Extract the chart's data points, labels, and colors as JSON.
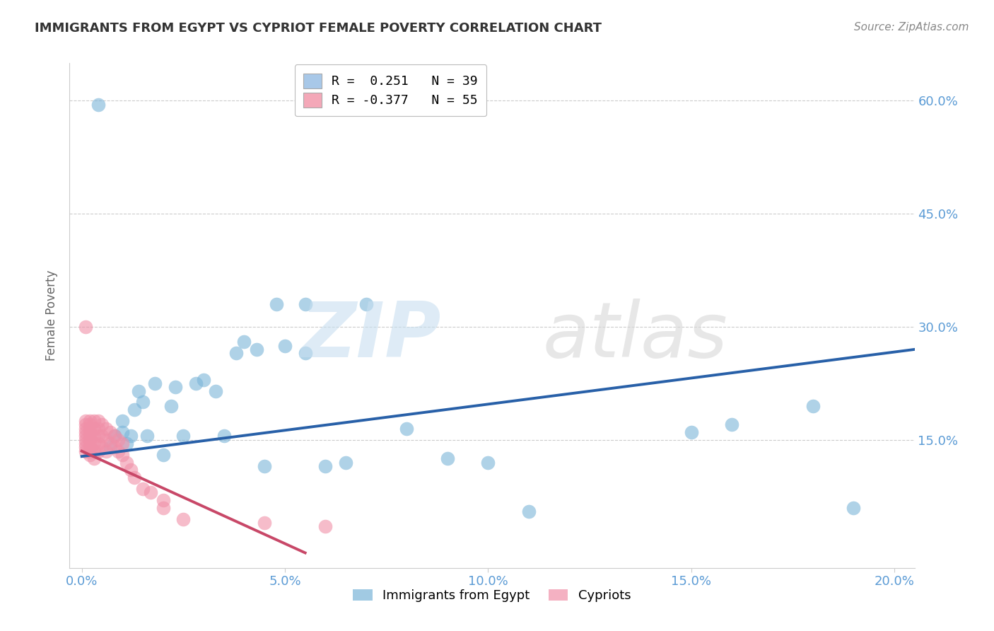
{
  "title": "IMMIGRANTS FROM EGYPT VS CYPRIOT FEMALE POVERTY CORRELATION CHART",
  "source": "Source: ZipAtlas.com",
  "xlabel_ticks": [
    "0.0%",
    "5.0%",
    "10.0%",
    "15.0%",
    "20.0%"
  ],
  "xlabel_tick_vals": [
    0.0,
    0.05,
    0.1,
    0.15,
    0.2
  ],
  "ylabel": "Female Poverty",
  "ylabel_ticks": [
    "15.0%",
    "30.0%",
    "45.0%",
    "60.0%"
  ],
  "ylabel_tick_vals": [
    0.15,
    0.3,
    0.45,
    0.6
  ],
  "xlim": [
    -0.003,
    0.205
  ],
  "ylim": [
    -0.02,
    0.65
  ],
  "legend1_label": "R =  0.251   N = 39",
  "legend2_label": "R = -0.377   N = 55",
  "legend1_color": "#a8c8e8",
  "legend2_color": "#f4a8b8",
  "blue_color": "#7ab4d8",
  "pink_color": "#f090a8",
  "blue_line_color": "#2860a8",
  "pink_line_color": "#c84868",
  "grid_color": "#cccccc",
  "background_color": "#ffffff",
  "egypt_x": [
    0.004,
    0.007,
    0.008,
    0.01,
    0.01,
    0.011,
    0.012,
    0.013,
    0.014,
    0.015,
    0.016,
    0.018,
    0.02,
    0.022,
    0.023,
    0.025,
    0.028,
    0.03,
    0.033,
    0.035,
    0.038,
    0.04,
    0.043,
    0.045,
    0.048,
    0.05,
    0.055,
    0.06,
    0.065,
    0.07,
    0.08,
    0.09,
    0.1,
    0.11,
    0.15,
    0.16,
    0.18,
    0.19,
    0.055
  ],
  "egypt_y": [
    0.595,
    0.14,
    0.155,
    0.16,
    0.175,
    0.145,
    0.155,
    0.19,
    0.215,
    0.2,
    0.155,
    0.225,
    0.13,
    0.195,
    0.22,
    0.155,
    0.225,
    0.23,
    0.215,
    0.155,
    0.265,
    0.28,
    0.27,
    0.115,
    0.33,
    0.275,
    0.265,
    0.115,
    0.12,
    0.33,
    0.165,
    0.125,
    0.12,
    0.055,
    0.16,
    0.17,
    0.195,
    0.06,
    0.33
  ],
  "cypriot_x": [
    0.001,
    0.001,
    0.001,
    0.001,
    0.001,
    0.001,
    0.001,
    0.001,
    0.001,
    0.002,
    0.002,
    0.002,
    0.002,
    0.002,
    0.002,
    0.002,
    0.002,
    0.002,
    0.002,
    0.003,
    0.003,
    0.003,
    0.003,
    0.003,
    0.003,
    0.004,
    0.004,
    0.004,
    0.004,
    0.004,
    0.005,
    0.005,
    0.005,
    0.006,
    0.006,
    0.006,
    0.007,
    0.007,
    0.008,
    0.008,
    0.009,
    0.009,
    0.01,
    0.01,
    0.011,
    0.012,
    0.013,
    0.015,
    0.017,
    0.02,
    0.02,
    0.025,
    0.045,
    0.06,
    0.001
  ],
  "cypriot_y": [
    0.17,
    0.165,
    0.155,
    0.15,
    0.145,
    0.14,
    0.135,
    0.175,
    0.16,
    0.175,
    0.17,
    0.165,
    0.16,
    0.155,
    0.15,
    0.145,
    0.14,
    0.135,
    0.13,
    0.175,
    0.165,
    0.155,
    0.145,
    0.135,
    0.125,
    0.175,
    0.165,
    0.155,
    0.145,
    0.135,
    0.17,
    0.155,
    0.14,
    0.165,
    0.15,
    0.135,
    0.16,
    0.145,
    0.155,
    0.14,
    0.15,
    0.135,
    0.145,
    0.13,
    0.12,
    0.11,
    0.1,
    0.085,
    0.08,
    0.07,
    0.06,
    0.045,
    0.04,
    0.035,
    0.3
  ],
  "blue_line_x": [
    0.0,
    0.205
  ],
  "blue_line_y": [
    0.128,
    0.27
  ],
  "pink_line_x": [
    0.0,
    0.055
  ],
  "pink_line_y": [
    0.135,
    0.0
  ]
}
